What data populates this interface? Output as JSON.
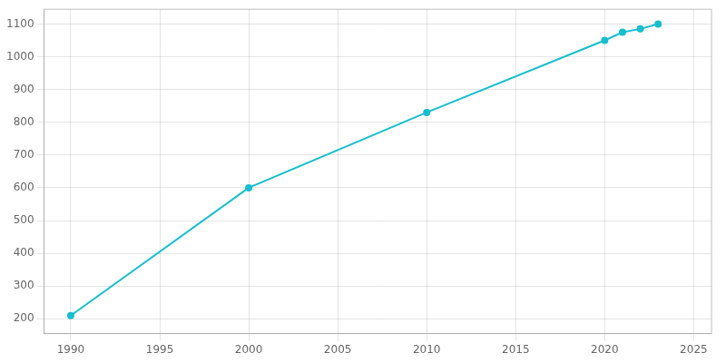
{
  "chart_data": {
    "type": "line",
    "x": [
      1990,
      2000,
      2010,
      2020,
      2021,
      2022,
      2023
    ],
    "values": [
      210,
      600,
      830,
      1050,
      1075,
      1085,
      1100
    ],
    "color": "#17becf",
    "marker": "circle",
    "xlim": [
      1988.5,
      2026
    ],
    "ylim": [
      155,
      1145
    ],
    "xticks": [
      1990,
      1995,
      2000,
      2005,
      2010,
      2015,
      2020,
      2025
    ],
    "yticks": [
      200,
      300,
      400,
      500,
      600,
      700,
      800,
      900,
      1000,
      1100
    ],
    "grid": true
  }
}
